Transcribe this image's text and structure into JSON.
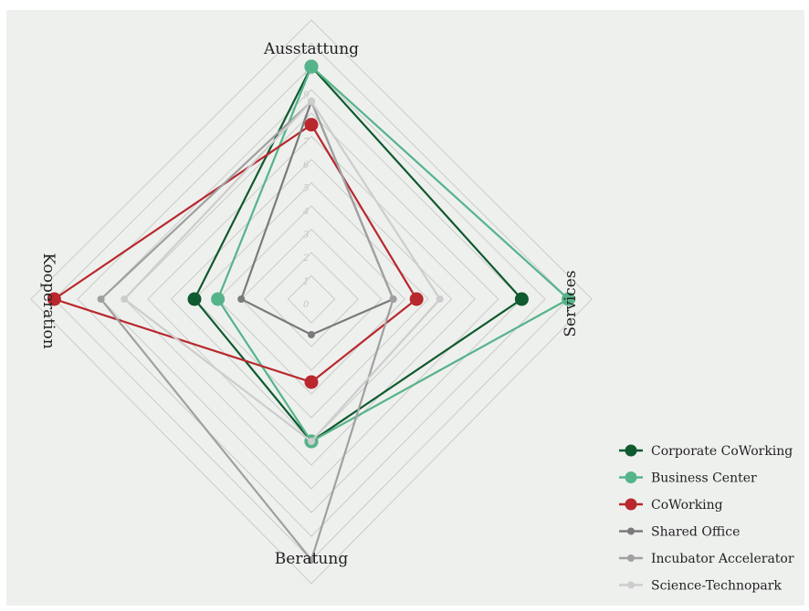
{
  "chart_data": {
    "type": "radar",
    "axes": [
      "Ausstattung",
      "Services",
      "Beratung",
      "Kooperation"
    ],
    "axis_directions": [
      "top",
      "right",
      "bottom",
      "left"
    ],
    "range": [
      0,
      10
    ],
    "ticks": [
      "0",
      "1",
      "2",
      "3",
      "4",
      "5",
      "6",
      "7",
      "8",
      "9",
      "10"
    ],
    "grid": true,
    "legend_position": "bottom-right",
    "series": [
      {
        "name": "Corporate CoWorking",
        "color": "#0f5a2e",
        "marker": "large",
        "values": [
          10,
          9,
          6,
          5
        ]
      },
      {
        "name": "Business Center",
        "color": "#56b48a",
        "marker": "large",
        "values": [
          10,
          11,
          6,
          4
        ]
      },
      {
        "name": "CoWorking",
        "color": "#b8282d",
        "marker": "large",
        "values": [
          7.5,
          4.5,
          3.5,
          11
        ]
      },
      {
        "name": "Shared Office",
        "color": "#7a7a7a",
        "marker": "small",
        "values": [
          8.5,
          3.5,
          1.5,
          3
        ]
      },
      {
        "name": "Incubator Accelerator",
        "color": "#a0a0a0",
        "marker": "small",
        "values": [
          8.5,
          3.5,
          11,
          9
        ]
      },
      {
        "name": "Science-Technopark",
        "color": "#cdcdcd",
        "marker": "small",
        "values": [
          8.5,
          5.5,
          6,
          8
        ]
      }
    ]
  }
}
